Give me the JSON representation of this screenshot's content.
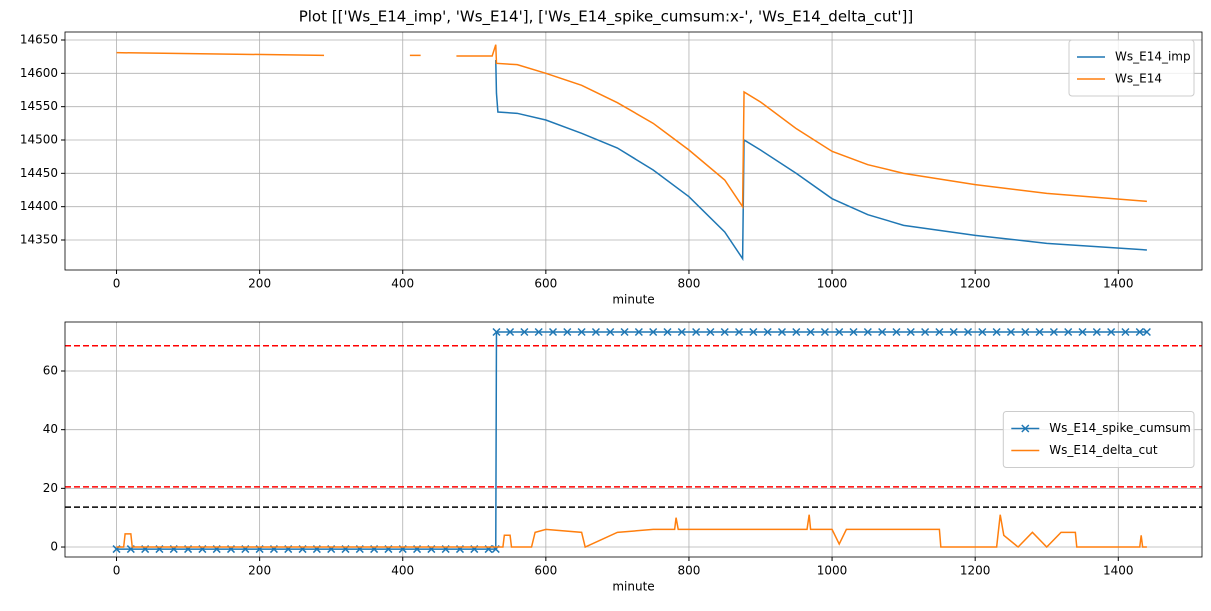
{
  "title": "Plot [['Ws_E14_imp', 'Ws_E14'], ['Ws_E14_spike_cumsum:x-', 'Ws_E14_delta_cut']]",
  "chart_data": [
    {
      "type": "line",
      "xlabel": "minute",
      "xlim": [
        -72,
        1517
      ],
      "ylim": [
        14305,
        14662
      ],
      "xticks": [
        0,
        200,
        400,
        600,
        800,
        1000,
        1200,
        1400
      ],
      "yticks": [
        14350,
        14400,
        14450,
        14500,
        14550,
        14600,
        14650
      ],
      "grid": true,
      "legend": "upper right",
      "series": [
        {
          "name": "Ws_E14_imp",
          "color": "#1f77b4",
          "x": [
            530,
            531,
            533,
            560,
            600,
            650,
            700,
            750,
            800,
            850,
            875,
            877,
            900,
            950,
            1000,
            1050,
            1100,
            1200,
            1300,
            1440
          ],
          "values": [
            14620,
            14570,
            14542,
            14540,
            14530,
            14510,
            14488,
            14455,
            14415,
            14362,
            14322,
            14500,
            14485,
            14450,
            14412,
            14388,
            14372,
            14357,
            14345,
            14335
          ]
        },
        {
          "name": "Ws_E14",
          "color": "#ff7f0e",
          "x": [
            0,
            290,
            350,
            410,
            425,
            450,
            475,
            525,
            530,
            531,
            560,
            600,
            650,
            700,
            750,
            800,
            850,
            875,
            877,
            900,
            950,
            1000,
            1050,
            1100,
            1200,
            1300,
            1440
          ],
          "values": [
            14631,
            14627,
            null,
            14627,
            14627,
            null,
            14626,
            14626,
            14643,
            14615,
            14613,
            14600,
            14582,
            14556,
            14525,
            14485,
            14440,
            14400,
            14572,
            14557,
            14517,
            14483,
            14463,
            14450,
            14433,
            14420,
            14408
          ]
        }
      ]
    },
    {
      "type": "line",
      "xlabel": "minute",
      "xlim": [
        -72,
        1517
      ],
      "ylim": [
        -3.4,
        76.7
      ],
      "xticks": [
        0,
        200,
        400,
        600,
        800,
        1000,
        1200,
        1400
      ],
      "yticks": [
        0,
        20,
        40,
        60
      ],
      "grid": true,
      "legend": "center right",
      "hlines": [
        {
          "value": 68.6,
          "color": "#ff0000"
        },
        {
          "value": 20.5,
          "color": "#ff0000"
        },
        {
          "value": 13.6,
          "color": "#000000"
        }
      ],
      "series": [
        {
          "name": "Ws_E14_spike_cumsum",
          "color": "#1f77b4",
          "marker": "x",
          "x": [
            0,
            20,
            40,
            60,
            80,
            100,
            120,
            140,
            160,
            180,
            200,
            220,
            240,
            260,
            280,
            300,
            320,
            340,
            360,
            380,
            400,
            420,
            440,
            460,
            480,
            500,
            520,
            530,
            531,
            550,
            570,
            590,
            610,
            630,
            650,
            670,
            690,
            710,
            730,
            750,
            770,
            790,
            810,
            830,
            850,
            870,
            890,
            910,
            930,
            950,
            970,
            990,
            1010,
            1030,
            1050,
            1070,
            1090,
            1110,
            1130,
            1150,
            1170,
            1190,
            1210,
            1230,
            1250,
            1270,
            1290,
            1310,
            1330,
            1350,
            1370,
            1390,
            1410,
            1430,
            1440
          ],
          "values": [
            -0.7,
            -0.7,
            -0.7,
            -0.7,
            -0.7,
            -0.7,
            -0.7,
            -0.7,
            -0.7,
            -0.7,
            -0.7,
            -0.7,
            -0.7,
            -0.7,
            -0.7,
            -0.7,
            -0.7,
            -0.7,
            -0.7,
            -0.7,
            -0.7,
            -0.7,
            -0.7,
            -0.7,
            -0.7,
            -0.7,
            -0.7,
            -0.7,
            73.3,
            73.3,
            73.3,
            73.3,
            73.3,
            73.3,
            73.3,
            73.3,
            73.3,
            73.3,
            73.3,
            73.3,
            73.3,
            73.3,
            73.3,
            73.3,
            73.3,
            73.3,
            73.3,
            73.3,
            73.3,
            73.3,
            73.3,
            73.3,
            73.3,
            73.3,
            73.3,
            73.3,
            73.3,
            73.3,
            73.3,
            73.3,
            73.3,
            73.3,
            73.3,
            73.3,
            73.3,
            73.3,
            73.3,
            73.3,
            73.3,
            73.3,
            73.3,
            73.3,
            73.3,
            73.3,
            73.3
          ]
        },
        {
          "name": "Ws_E14_delta_cut",
          "color": "#ff7f0e",
          "x": [
            0,
            10,
            12,
            20,
            22,
            530,
            540,
            542,
            550,
            552,
            580,
            585,
            600,
            650,
            655,
            700,
            750,
            780,
            782,
            785,
            800,
            900,
            965,
            968,
            970,
            1000,
            1010,
            1020,
            1050,
            1100,
            1150,
            1152,
            1230,
            1235,
            1240,
            1260,
            1280,
            1300,
            1320,
            1340,
            1342,
            1430,
            1432,
            1434,
            1440
          ],
          "values": [
            0,
            0,
            4.5,
            4.5,
            0,
            0,
            0,
            4,
            4,
            0,
            0,
            5,
            6,
            5,
            0,
            5,
            6,
            6,
            10,
            6,
            6,
            6,
            6,
            11,
            6,
            6,
            1,
            6,
            6,
            6,
            6,
            0,
            0,
            11,
            4,
            0,
            5,
            0,
            5,
            5,
            0,
            0,
            4,
            0,
            0
          ]
        }
      ]
    }
  ]
}
